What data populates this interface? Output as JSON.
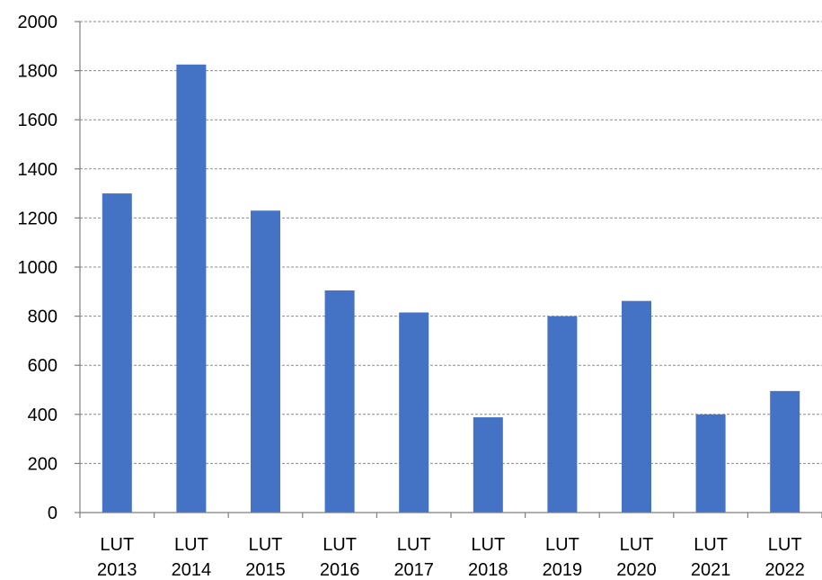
{
  "chart_data": {
    "type": "bar",
    "categories": [
      [
        "LUT",
        "2013"
      ],
      [
        "LUT",
        "2014"
      ],
      [
        "LUT",
        "2015"
      ],
      [
        "LUT",
        "2016"
      ],
      [
        "LUT",
        "2017"
      ],
      [
        "LUT",
        "2018"
      ],
      [
        "LUT",
        "2019"
      ],
      [
        "LUT",
        "2020"
      ],
      [
        "LUT",
        "2021"
      ],
      [
        "LUT",
        "2022"
      ]
    ],
    "values": [
      1300,
      1825,
      1230,
      905,
      815,
      388,
      800,
      862,
      400,
      495
    ],
    "title": "",
    "xlabel": "",
    "ylabel": "",
    "ylim": [
      0,
      2000
    ],
    "yticks": [
      0,
      200,
      400,
      600,
      800,
      1000,
      1200,
      1400,
      1600,
      1800,
      2000
    ],
    "grid": true,
    "legend": "none",
    "bar_color": "#4472C4"
  }
}
